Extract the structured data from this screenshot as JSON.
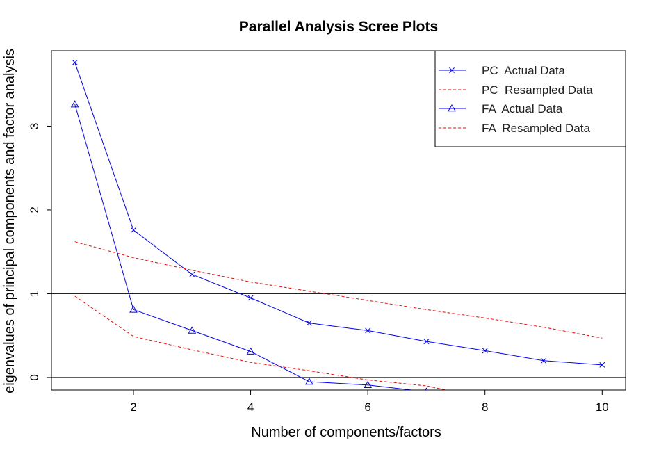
{
  "chart_data": {
    "type": "line",
    "title": "Parallel Analysis Scree Plots",
    "xlabel": "Number of components/factors",
    "ylabel": "eigenvalues of principal components and factor analysis",
    "xlim": [
      0.6,
      10.4
    ],
    "ylim": [
      -0.15,
      3.9
    ],
    "x_ticks": [
      2,
      4,
      6,
      8,
      10
    ],
    "y_ticks": [
      0,
      1,
      2,
      3
    ],
    "hlines": [
      0,
      1
    ],
    "grid": false,
    "legend_position": "top-right",
    "series": [
      {
        "name": "PC  Actual Data",
        "color": "#0000ff",
        "line": "solid",
        "marker": "x",
        "x": [
          1,
          2,
          3,
          4,
          5,
          6,
          7,
          8,
          9,
          10
        ],
        "values": [
          3.76,
          1.76,
          1.23,
          0.95,
          0.65,
          0.56,
          0.43,
          0.32,
          0.2,
          0.15
        ]
      },
      {
        "name": "PC  Resampled Data",
        "color": "#ff0000",
        "line": "dashed",
        "marker": "none",
        "x": [
          1,
          2,
          3,
          4,
          5,
          6,
          7,
          8,
          9,
          10
        ],
        "values": [
          1.62,
          1.43,
          1.28,
          1.14,
          1.03,
          0.92,
          0.81,
          0.71,
          0.6,
          0.47
        ]
      },
      {
        "name": "FA  Actual Data",
        "color": "#0000ff",
        "line": "solid",
        "marker": "triangle",
        "x": [
          1,
          2,
          3,
          4,
          5,
          6,
          7
        ],
        "values": [
          3.26,
          0.81,
          0.56,
          0.31,
          -0.05,
          -0.09,
          -0.17
        ]
      },
      {
        "name": "FA  Resampled Data",
        "color": "#ff0000",
        "line": "dashed",
        "marker": "none",
        "x": [
          1,
          2,
          3,
          4,
          5,
          6,
          7,
          8
        ],
        "values": [
          0.97,
          0.49,
          0.33,
          0.18,
          0.08,
          -0.03,
          -0.1,
          -0.25
        ]
      }
    ]
  }
}
